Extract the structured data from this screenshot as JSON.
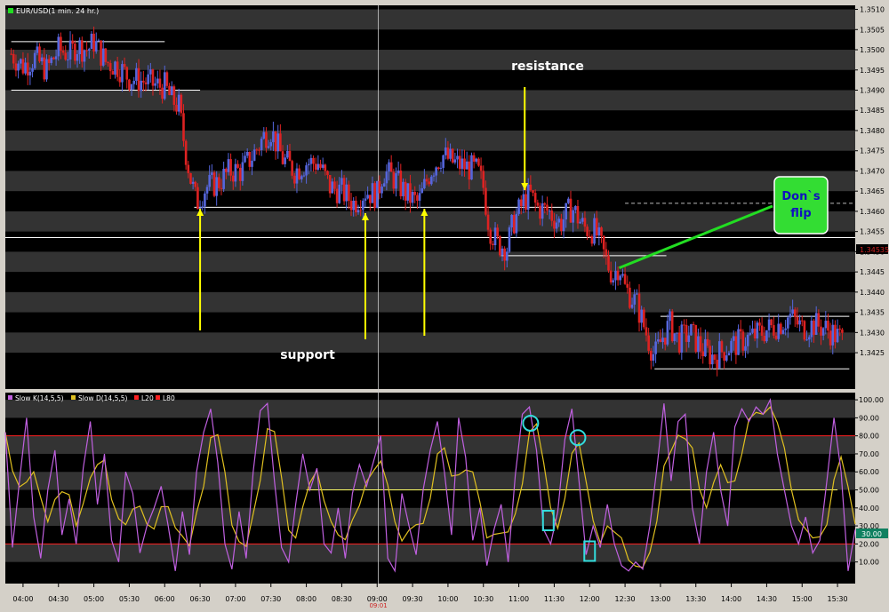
{
  "symbol_label": "EUR/USD(1 min. 24 hr.)",
  "indicator_legend": [
    {
      "label": "Slow K(14,5,5)",
      "color": "#c060e0"
    },
    {
      "label": "Slow D(14,5,5)",
      "color": "#e0c020"
    },
    {
      "label": "L20",
      "color": "#ff2020"
    },
    {
      "label": "L80",
      "color": "#ff2020"
    }
  ],
  "colors": {
    "background": "#000000",
    "stripe": "#333333",
    "up_candle": "#5566dd",
    "down_candle": "#dd2222",
    "annotation_arrow": "#ffff00",
    "flip_line": "#22dd22",
    "flip_box": "#33dd33",
    "flip_text": "#1010c0",
    "highlight_marker": "#33dddd",
    "axis_panel": "#d4d0c8"
  },
  "annotations": {
    "resistance": "resistance",
    "support": "support",
    "flip_line1": "Don`s",
    "flip_line2": "flip"
  },
  "current_price_tag": "1.34535",
  "stoch_tag": "30.00",
  "chart_data": [
    {
      "type": "candlestick",
      "title": "EUR/USD(1 min. 24 hr.)",
      "x_ticks": [
        "04:00",
        "04:30",
        "05:00",
        "05:30",
        "06:00",
        "06:30",
        "07:00",
        "07:30",
        "08:00",
        "08:30",
        "09:00",
        "09:30",
        "10:00",
        "10:30",
        "11:00",
        "11:30",
        "12:00",
        "12:30",
        "13:00",
        "13:30",
        "14:00",
        "14:30",
        "15:00",
        "15:30"
      ],
      "x_marker_label": "09:01",
      "x_range": [
        "03:45",
        "15:45"
      ],
      "y_ticks": [
        1.3425,
        1.343,
        1.3435,
        1.344,
        1.3445,
        1.345,
        1.3455,
        1.346,
        1.3465,
        1.347,
        1.3475,
        1.348,
        1.3485,
        1.349,
        1.3495,
        1.35,
        1.3505,
        1.351
      ],
      "ylim": [
        1.3416,
        1.3511
      ],
      "price_path": [
        [
          "03:50",
          1.3499
        ],
        [
          "04:00",
          1.3496
        ],
        [
          "04:10",
          1.3498
        ],
        [
          "04:20",
          1.3495
        ],
        [
          "04:30",
          1.35
        ],
        [
          "04:40",
          1.3499
        ],
        [
          "04:45",
          1.3501
        ],
        [
          "04:55",
          1.35
        ],
        [
          "05:00",
          1.3502
        ],
        [
          "05:10",
          1.3497
        ],
        [
          "05:20",
          1.3496
        ],
        [
          "05:30",
          1.3493
        ],
        [
          "05:45",
          1.3492
        ],
        [
          "05:55",
          1.3491
        ],
        [
          "06:00",
          1.3491
        ],
        [
          "06:05",
          1.3488
        ],
        [
          "06:12",
          1.3486
        ],
        [
          "06:17",
          1.3476
        ],
        [
          "06:22",
          1.3468
        ],
        [
          "06:27",
          1.3462
        ],
        [
          "06:35",
          1.3466
        ],
        [
          "06:45",
          1.3467
        ],
        [
          "06:55",
          1.347
        ],
        [
          "07:05",
          1.347
        ],
        [
          "07:15",
          1.3474
        ],
        [
          "07:25",
          1.3479
        ],
        [
          "07:30",
          1.348
        ],
        [
          "07:40",
          1.3473
        ],
        [
          "07:50",
          1.347
        ],
        [
          "08:00",
          1.3472
        ],
        [
          "08:10",
          1.3472
        ],
        [
          "08:20",
          1.3466
        ],
        [
          "08:30",
          1.3465
        ],
        [
          "08:40",
          1.3462
        ],
        [
          "08:50",
          1.3465
        ],
        [
          "09:00",
          1.3464
        ],
        [
          "09:05",
          1.347
        ],
        [
          "09:15",
          1.3468
        ],
        [
          "09:25",
          1.3464
        ],
        [
          "09:35",
          1.3462
        ],
        [
          "09:45",
          1.347
        ],
        [
          "09:55",
          1.3474
        ],
        [
          "10:05",
          1.3472
        ],
        [
          "10:15",
          1.3471
        ],
        [
          "10:25",
          1.347
        ],
        [
          "10:30",
          1.3466
        ],
        [
          "10:35",
          1.3456
        ],
        [
          "10:42",
          1.3452
        ],
        [
          "10:50",
          1.3451
        ],
        [
          "10:55",
          1.3457
        ],
        [
          "11:05",
          1.3463
        ],
        [
          "11:10",
          1.3464
        ],
        [
          "11:15",
          1.3461
        ],
        [
          "11:25",
          1.346
        ],
        [
          "11:35",
          1.3457
        ],
        [
          "11:45",
          1.3461
        ],
        [
          "11:55",
          1.3456
        ],
        [
          "12:05",
          1.3455
        ],
        [
          "12:15",
          1.3447
        ],
        [
          "12:20",
          1.3444
        ],
        [
          "12:25",
          1.3447
        ],
        [
          "12:30",
          1.3441
        ],
        [
          "12:40",
          1.3437
        ],
        [
          "12:50",
          1.3428
        ],
        [
          "12:55",
          1.3424
        ],
        [
          "13:02",
          1.3429
        ],
        [
          "13:08",
          1.3432
        ],
        [
          "13:15",
          1.3428
        ],
        [
          "13:25",
          1.343
        ],
        [
          "13:35",
          1.3426
        ],
        [
          "13:45",
          1.3424
        ],
        [
          "13:55",
          1.3426
        ],
        [
          "14:10",
          1.3428
        ],
        [
          "14:25",
          1.343
        ],
        [
          "14:40",
          1.3432
        ],
        [
          "14:50",
          1.3434
        ],
        [
          "15:00",
          1.3431
        ],
        [
          "15:10",
          1.3432
        ],
        [
          "15:20",
          1.3431
        ],
        [
          "15:30",
          1.3429
        ],
        [
          "15:35",
          1.3428
        ]
      ],
      "horizontal_levels": [
        {
          "from": "03:50",
          "to": "06:00",
          "y": 1.3502
        },
        {
          "from": "03:50",
          "to": "06:30",
          "y": 1.349
        },
        {
          "from": "06:25",
          "to": "11:45",
          "y": 1.3461
        },
        {
          "from": "10:45",
          "to": "13:05",
          "y": 1.3449
        },
        {
          "from": "13:00",
          "to": "15:40",
          "y": 1.3434
        },
        {
          "from": "12:55",
          "to": "15:40",
          "y": 1.3421
        },
        {
          "from": "03:45",
          "to": "15:45",
          "y": 1.34535
        }
      ],
      "dashed_level": {
        "from": "12:30",
        "to": "15:45",
        "y": 1.3462
      },
      "current_price": 1.34535
    },
    {
      "type": "line",
      "series": [
        {
          "name": "Slow K(14,5,5)",
          "color": "#c060e0"
        },
        {
          "name": "Slow D(14,5,5)",
          "color": "#e0c020"
        },
        {
          "name": "L20",
          "value": 20,
          "color": "#ff2020"
        },
        {
          "name": "L80",
          "value": 80,
          "color": "#ff2020"
        }
      ],
      "y_ticks": [
        10.0,
        20.0,
        30.0,
        40.0,
        50.0,
        60.0,
        70.0,
        80.0,
        90.0,
        100.0
      ],
      "ylim": [
        -2,
        104
      ],
      "mid_level": 50,
      "current_value": 30.0,
      "slow_k": [
        [
          "03:45",
          82
        ],
        [
          "03:51",
          18
        ],
        [
          "03:57",
          55
        ],
        [
          "04:03",
          90
        ],
        [
          "04:09",
          35
        ],
        [
          "04:15",
          12
        ],
        [
          "04:21",
          50
        ],
        [
          "04:27",
          72
        ],
        [
          "04:33",
          25
        ],
        [
          "04:39",
          45
        ],
        [
          "04:45",
          20
        ],
        [
          "04:51",
          62
        ],
        [
          "04:57",
          88
        ],
        [
          "05:03",
          42
        ],
        [
          "05:09",
          70
        ],
        [
          "05:15",
          22
        ],
        [
          "05:21",
          10
        ],
        [
          "05:27",
          60
        ],
        [
          "05:33",
          48
        ],
        [
          "05:39",
          15
        ],
        [
          "05:45",
          30
        ],
        [
          "05:51",
          40
        ],
        [
          "05:57",
          52
        ],
        [
          "06:03",
          30
        ],
        [
          "06:09",
          5
        ],
        [
          "06:15",
          38
        ],
        [
          "06:21",
          14
        ],
        [
          "06:27",
          60
        ],
        [
          "06:33",
          82
        ],
        [
          "06:39",
          95
        ],
        [
          "06:45",
          65
        ],
        [
          "06:51",
          20
        ],
        [
          "06:57",
          6
        ],
        [
          "07:03",
          38
        ],
        [
          "07:09",
          12
        ],
        [
          "07:15",
          60
        ],
        [
          "07:21",
          94
        ],
        [
          "07:27",
          98
        ],
        [
          "07:33",
          55
        ],
        [
          "07:39",
          18
        ],
        [
          "07:45",
          10
        ],
        [
          "07:51",
          42
        ],
        [
          "07:57",
          70
        ],
        [
          "08:03",
          50
        ],
        [
          "08:09",
          62
        ],
        [
          "08:15",
          20
        ],
        [
          "08:21",
          15
        ],
        [
          "08:27",
          40
        ],
        [
          "08:33",
          12
        ],
        [
          "08:39",
          48
        ],
        [
          "08:45",
          64
        ],
        [
          "08:51",
          52
        ],
        [
          "08:57",
          66
        ],
        [
          "09:03",
          80
        ],
        [
          "09:09",
          12
        ],
        [
          "09:15",
          5
        ],
        [
          "09:21",
          48
        ],
        [
          "09:27",
          30
        ],
        [
          "09:33",
          14
        ],
        [
          "09:39",
          50
        ],
        [
          "09:45",
          72
        ],
        [
          "09:51",
          88
        ],
        [
          "09:57",
          60
        ],
        [
          "10:03",
          25
        ],
        [
          "10:09",
          90
        ],
        [
          "10:15",
          68
        ],
        [
          "10:21",
          22
        ],
        [
          "10:27",
          40
        ],
        [
          "10:33",
          8
        ],
        [
          "10:39",
          28
        ],
        [
          "10:45",
          42
        ],
        [
          "10:51",
          10
        ],
        [
          "10:57",
          58
        ],
        [
          "11:03",
          92
        ],
        [
          "11:09",
          96
        ],
        [
          "11:15",
          72
        ],
        [
          "11:21",
          28
        ],
        [
          "11:27",
          20
        ],
        [
          "11:33",
          38
        ],
        [
          "11:39",
          78
        ],
        [
          "11:45",
          95
        ],
        [
          "11:51",
          55
        ],
        [
          "11:57",
          14
        ],
        [
          "12:03",
          30
        ],
        [
          "12:09",
          18
        ],
        [
          "12:15",
          42
        ],
        [
          "12:21",
          20
        ],
        [
          "12:27",
          8
        ],
        [
          "12:33",
          5
        ],
        [
          "12:39",
          10
        ],
        [
          "12:45",
          6
        ],
        [
          "12:51",
          30
        ],
        [
          "12:57",
          62
        ],
        [
          "13:03",
          98
        ],
        [
          "13:09",
          55
        ],
        [
          "13:15",
          88
        ],
        [
          "13:21",
          92
        ],
        [
          "13:27",
          40
        ],
        [
          "13:33",
          20
        ],
        [
          "13:39",
          60
        ],
        [
          "13:45",
          82
        ],
        [
          "13:51",
          50
        ],
        [
          "13:57",
          30
        ],
        [
          "14:03",
          85
        ],
        [
          "14:09",
          95
        ],
        [
          "14:15",
          88
        ],
        [
          "14:21",
          96
        ],
        [
          "14:27",
          92
        ],
        [
          "14:33",
          100
        ],
        [
          "14:39",
          70
        ],
        [
          "14:45",
          50
        ],
        [
          "14:51",
          30
        ],
        [
          "14:57",
          20
        ],
        [
          "15:03",
          35
        ],
        [
          "15:09",
          15
        ],
        [
          "15:15",
          22
        ],
        [
          "15:21",
          55
        ],
        [
          "15:27",
          90
        ],
        [
          "15:33",
          60
        ],
        [
          "15:39",
          5
        ],
        [
          "15:45",
          28
        ]
      ],
      "highlights": [
        {
          "shape": "circle",
          "x": "11:10",
          "y": 87
        },
        {
          "shape": "circle",
          "x": "11:50",
          "y": 79
        },
        {
          "shape": "rect",
          "x": "11:25",
          "y": 33
        },
        {
          "shape": "rect",
          "x": "12:00",
          "y": 16
        }
      ]
    }
  ]
}
